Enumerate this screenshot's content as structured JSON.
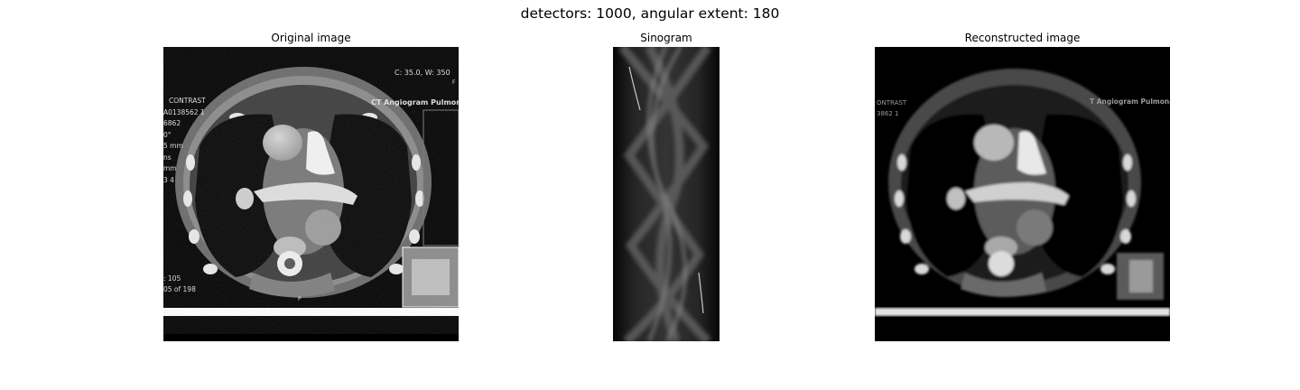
{
  "figure": {
    "title": "detectors: 1000, angular extent: 180"
  },
  "panels": [
    {
      "title": "Original image",
      "overlay_text": {
        "top_right": "C:   35.0, W:   350",
        "top_right_small": "F",
        "series": "CT Angiogram Pulmonar",
        "left_lines": [
          "CONTRAST",
          "A0138562 1",
          "6862",
          "0°",
          "5 mm",
          "ns",
          "mm",
          "3 4"
        ],
        "bottom_lines": [
          ": 105",
          "05 of 198"
        ],
        "bottom_center": "P"
      }
    },
    {
      "title": "Sinogram"
    },
    {
      "title": "Reconstructed image",
      "overlay_text": {
        "left_lines": [
          "ONTRAST",
          "3862 1"
        ],
        "series": "T Angiogram Pulmonar"
      }
    }
  ]
}
